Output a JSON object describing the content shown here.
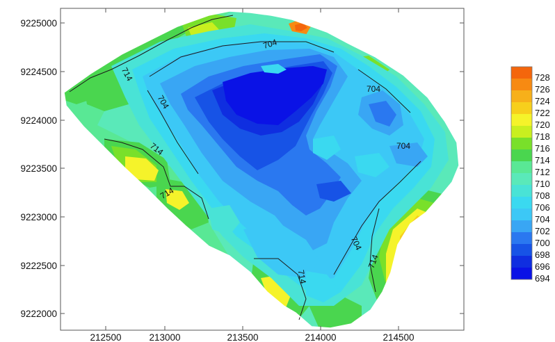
{
  "map": {
    "x_ticks": [
      "212500",
      "213000",
      "213500",
      "214000",
      "214500"
    ],
    "y_ticks": [
      "9225000",
      "9224500",
      "9224000",
      "9223500",
      "9223000",
      "9222500",
      "9222000"
    ],
    "contour_labels": [
      "704",
      "704",
      "704",
      "704",
      "704",
      "714",
      "714",
      "714",
      "714"
    ],
    "colors": {
      "c694": "#0a12e6",
      "c696": "#0f2ee0",
      "c698": "#1753e6",
      "c700": "#2a78f0",
      "c702": "#39a6f4",
      "c704": "#3cc8f6",
      "c706": "#3ad9f0",
      "c708": "#49e3d6",
      "c710": "#5ae9b9",
      "c712": "#59e895",
      "c714": "#4ad64f",
      "c716": "#79e02a",
      "c718": "#c9ef1f",
      "c720": "#f5f32a",
      "c722": "#f7cf1c",
      "c724": "#f7b01a",
      "c726": "#f78a12",
      "c728": "#f4660c"
    }
  },
  "legend": {
    "labels": [
      "728",
      "726",
      "724",
      "722",
      "720",
      "718",
      "716",
      "714",
      "712",
      "710",
      "708",
      "706",
      "704",
      "702",
      "700",
      "698",
      "696",
      "694"
    ]
  }
}
